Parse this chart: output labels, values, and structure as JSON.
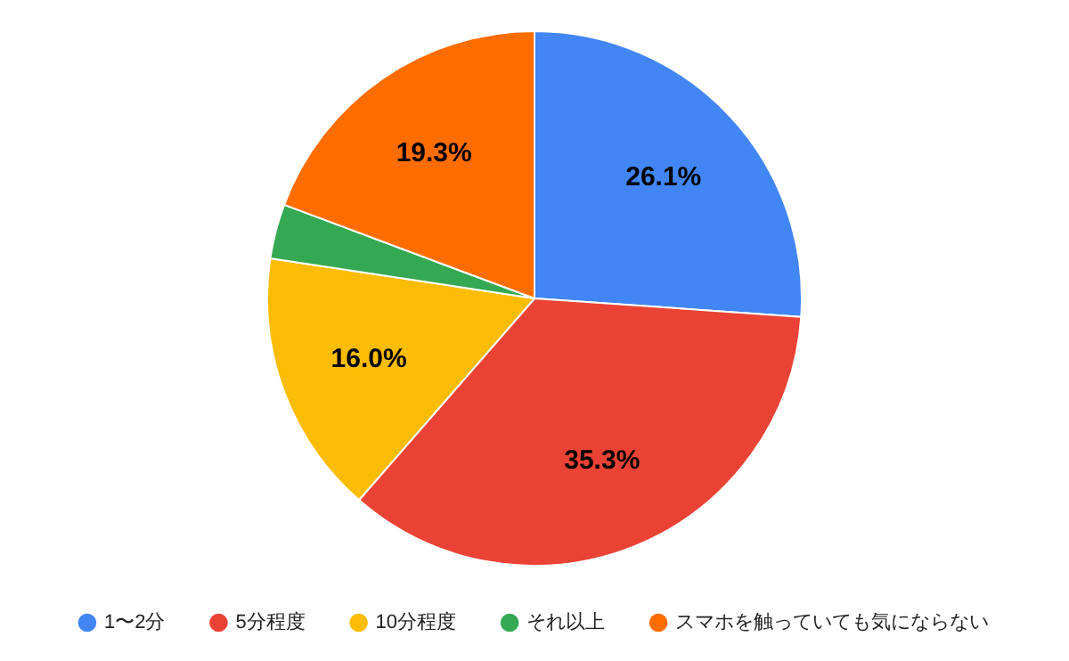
{
  "chart_data": {
    "type": "pie",
    "categories": [
      "1〜2分",
      "5分程度",
      "10分程度",
      "それ以上",
      "スマホを触っていても気にならない"
    ],
    "values": [
      26.1,
      35.3,
      16.0,
      3.3,
      19.3
    ],
    "colors": [
      "#4285f4",
      "#ea4335",
      "#fbbc04",
      "#34a853",
      "#ff6d01"
    ],
    "value_labels": [
      "26.1%",
      "35.3%",
      "16.0%",
      null,
      "19.3%"
    ],
    "legend": "bottom"
  }
}
